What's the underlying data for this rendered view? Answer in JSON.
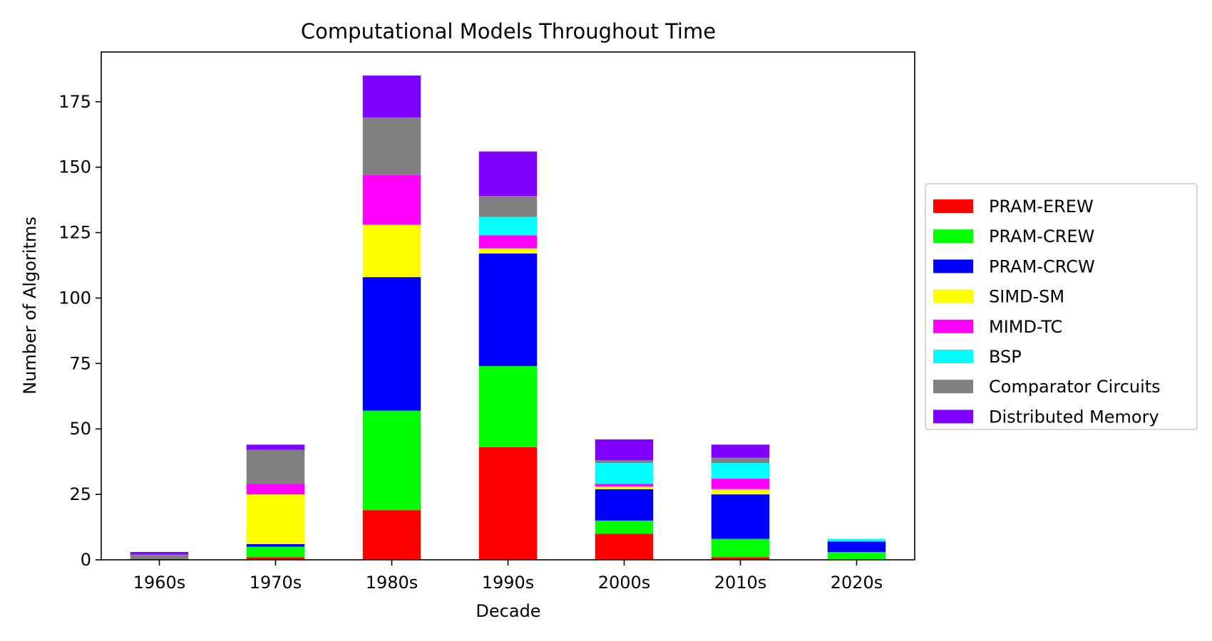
{
  "chart_data": {
    "type": "bar",
    "stacked": true,
    "title": "Computational Models Throughout Time",
    "xlabel": "Decade",
    "ylabel": "Number of Algoritms",
    "ylim": [
      0,
      194
    ],
    "yticks": [
      0,
      25,
      50,
      75,
      100,
      125,
      150,
      175
    ],
    "grid": false,
    "legend_position": "right",
    "categories": [
      "1960s",
      "1970s",
      "1980s",
      "1990s",
      "2000s",
      "2010s",
      "2020s"
    ],
    "series": [
      {
        "name": "PRAM-EREW",
        "color": "#ff0000",
        "values": [
          0,
          1,
          19,
          43,
          10,
          1,
          0
        ]
      },
      {
        "name": "PRAM-CREW",
        "color": "#00ff00",
        "values": [
          0,
          4,
          38,
          31,
          5,
          7,
          3
        ]
      },
      {
        "name": "PRAM-CRCW",
        "color": "#0000ff",
        "values": [
          0,
          1,
          51,
          43,
          12,
          17,
          4
        ]
      },
      {
        "name": "SIMD-SM",
        "color": "#ffff00",
        "values": [
          0,
          19,
          20,
          2,
          1,
          2,
          0
        ]
      },
      {
        "name": "MIMD-TC",
        "color": "#ff00ff",
        "values": [
          0,
          4,
          19,
          5,
          1,
          4,
          0
        ]
      },
      {
        "name": "BSP",
        "color": "#00ffff",
        "values": [
          0,
          0,
          0,
          7,
          8,
          6,
          1
        ]
      },
      {
        "name": "Comparator Circuits",
        "color": "#808080",
        "values": [
          2,
          13,
          22,
          8,
          1,
          2,
          0
        ]
      },
      {
        "name": "Distributed Memory",
        "color": "#8000ff",
        "values": [
          1,
          2,
          16,
          17,
          8,
          5,
          0
        ]
      }
    ]
  }
}
